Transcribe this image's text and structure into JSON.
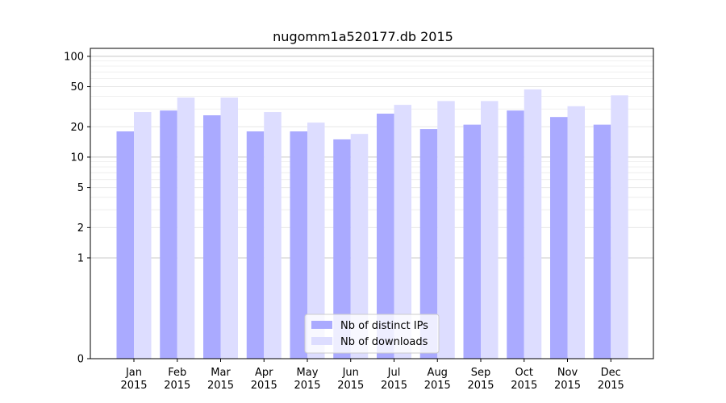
{
  "chart_data": {
    "type": "bar",
    "title": "nugomm1a520177.db 2015",
    "xlabel": "",
    "ylabel": "",
    "yscale": "symlog",
    "ylim": [
      0,
      120
    ],
    "yticks": [
      0,
      1,
      2,
      5,
      10,
      20,
      50,
      100
    ],
    "grid": true,
    "legend_position": "bottom-center",
    "categories": [
      "Jan\n2015",
      "Feb\n2015",
      "Mar\n2015",
      "Apr\n2015",
      "May\n2015",
      "Jun\n2015",
      "Jul\n2015",
      "Aug\n2015",
      "Sep\n2015",
      "Oct\n2015",
      "Nov\n2015",
      "Dec\n2015"
    ],
    "series": [
      {
        "name": "Nb of distinct IPs",
        "color": "#aaaaff",
        "values": [
          18,
          29,
          26,
          18,
          18,
          15,
          27,
          19,
          21,
          29,
          25,
          21
        ]
      },
      {
        "name": "Nb of downloads",
        "color": "#ddddff",
        "values": [
          28,
          39,
          39,
          28,
          22,
          17,
          33,
          36,
          36,
          47,
          32,
          41
        ]
      }
    ]
  }
}
